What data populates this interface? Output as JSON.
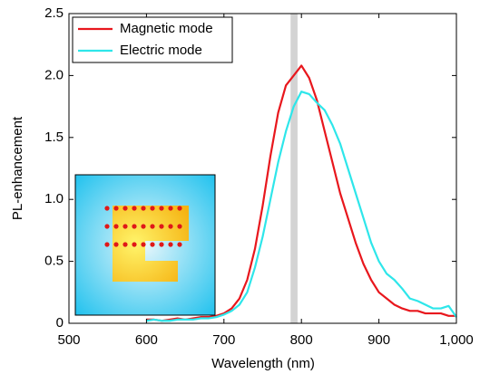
{
  "chart_data": {
    "type": "line",
    "x_label": "Wavelength (nm)",
    "y_label": "PL-enhancement",
    "x": [
      600,
      610,
      620,
      630,
      640,
      650,
      660,
      670,
      680,
      690,
      700,
      710,
      720,
      730,
      740,
      750,
      760,
      770,
      780,
      790,
      800,
      810,
      820,
      830,
      840,
      850,
      860,
      870,
      880,
      890,
      900,
      910,
      920,
      930,
      940,
      950,
      960,
      970,
      980,
      990,
      1000
    ],
    "series": [
      {
        "name": "Magnetic mode",
        "color": "#e8171d",
        "values": [
          0.03,
          0.03,
          0.02,
          0.03,
          0.04,
          0.03,
          0.04,
          0.05,
          0.05,
          0.06,
          0.08,
          0.12,
          0.2,
          0.35,
          0.6,
          0.95,
          1.35,
          1.7,
          1.92,
          2.0,
          2.08,
          1.98,
          1.8,
          1.55,
          1.3,
          1.05,
          0.85,
          0.65,
          0.48,
          0.35,
          0.25,
          0.2,
          0.15,
          0.12,
          0.1,
          0.1,
          0.08,
          0.08,
          0.08,
          0.06,
          0.06
        ]
      },
      {
        "name": "Electric mode",
        "color": "#2ee6ea",
        "values": [
          0.02,
          0.03,
          0.02,
          0.02,
          0.03,
          0.03,
          0.03,
          0.04,
          0.04,
          0.05,
          0.07,
          0.1,
          0.15,
          0.25,
          0.45,
          0.7,
          1.0,
          1.3,
          1.55,
          1.75,
          1.87,
          1.85,
          1.78,
          1.72,
          1.6,
          1.45,
          1.25,
          1.05,
          0.85,
          0.65,
          0.5,
          0.4,
          0.35,
          0.28,
          0.2,
          0.18,
          0.15,
          0.12,
          0.12,
          0.14,
          0.05
        ]
      }
    ],
    "band": [
      786,
      795
    ],
    "band_color": "#d3d3d3",
    "xlim": [
      500,
      1000
    ],
    "ylim": [
      0,
      2.5
    ],
    "xticks": [
      500,
      600,
      700,
      800,
      900,
      {
        "value": 1000,
        "label": "1,000"
      }
    ],
    "yticks": [
      0,
      0.5,
      {
        "value": 1,
        "label": "1.0"
      },
      1.5,
      {
        "value": 2,
        "label": "2.0"
      },
      2.5
    ],
    "legend": "upper left"
  }
}
